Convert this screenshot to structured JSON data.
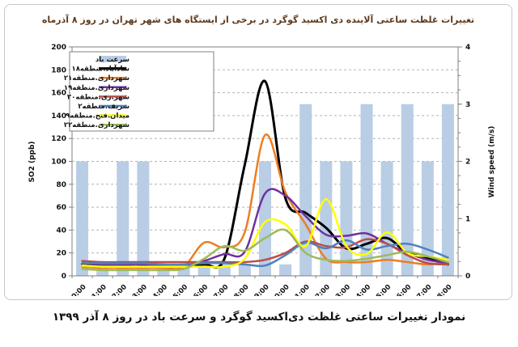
{
  "figure": {
    "title": "تغییرات غلظت ساعتی آلاینده دی اکسید گوگرد در برخی از ایستگاه های شهر تهران در روز ۸ آذرماه",
    "caption": "نمودار تغییرات ساعتی غلظت دی‌اکسید گوگرد و سرعت باد در روز ۸ آذر ۱۳۹۹"
  },
  "chart_data": {
    "type": "combo: bar (wind, right axis) + smooth lines (SO2, left axis)",
    "x_categories": [
      "00:00",
      "01:00",
      "02:00",
      "03:00",
      "04:00",
      "05:00",
      "06:00",
      "07:00",
      "08:00",
      "09:00",
      "10:00",
      "11:00",
      "12:00",
      "13:00",
      "14:00",
      "15:00",
      "16:00",
      "17:00",
      "18:00"
    ],
    "left_axis": {
      "title": "SO2 (ppb)",
      "min": 0,
      "max": 200,
      "step": 20,
      "tick_labels": [
        "0",
        "20",
        "40",
        "60",
        "80",
        "100",
        "120",
        "140",
        "160",
        "180",
        "200"
      ]
    },
    "right_axis": {
      "title": "Wind speed (m/s)",
      "min": 0,
      "max": 4,
      "step": 1,
      "tick_labels": [
        "0",
        "1",
        "2",
        "3",
        "4"
      ],
      "minor_step": 0.25
    },
    "grid": "horizontal dashed gray every 20 ppb",
    "legend_position": "top-left inside plot",
    "bar_series": {
      "name": "سرعت باد",
      "axis": "right",
      "color": "#B9CDE5",
      "values_mps": [
        2,
        0.2,
        2,
        2,
        0.2,
        0.2,
        0.2,
        0.2,
        0.2,
        2,
        0.2,
        3,
        2,
        2,
        3,
        2,
        3,
        2,
        3
      ]
    },
    "line_series": [
      {
        "name": "شادآباد.منطقه۱۸",
        "color": "#000000",
        "width": 3,
        "values": [
          10,
          10,
          10,
          10,
          9,
          8,
          10,
          15,
          97,
          170,
          68,
          55,
          42,
          24,
          28,
          33,
          20,
          16,
          10
        ]
      },
      {
        "name": "شهرداری.منطقه۲۱",
        "color": "#EE7D22",
        "width": 2.5,
        "values": [
          8,
          7,
          7,
          7,
          7,
          8,
          29,
          25,
          38,
          123,
          73,
          45,
          15,
          12,
          12,
          14,
          12,
          10,
          12
        ]
      },
      {
        "name": "شهرداری.منطقه۱۹",
        "color": "#7030A0",
        "width": 2.5,
        "values": [
          11,
          10,
          10,
          10,
          9,
          9,
          13,
          19,
          21,
          72,
          70,
          52,
          36,
          35,
          37,
          28,
          20,
          14,
          11
        ]
      },
      {
        "name": "شهر.ری.منطقه۲۰",
        "color": "#BE4B48",
        "width": 2.5,
        "values": [
          13,
          12,
          12,
          12,
          12,
          12,
          12,
          12,
          12,
          14,
          20,
          30,
          26,
          25,
          32,
          28,
          18,
          11,
          10
        ]
      },
      {
        "name": "شریف.منطقه۲",
        "color": "#4F81BD",
        "width": 2.5,
        "values": [
          11,
          11,
          11,
          11,
          10,
          10,
          11,
          11,
          10,
          9,
          18,
          29,
          24,
          31,
          23,
          26,
          28,
          23,
          16
        ]
      },
      {
        "name": "میدان.فتح.منطقه۹",
        "color": "#FFFF00",
        "width": 2.5,
        "values": [
          9,
          8,
          8,
          8,
          8,
          8,
          8,
          8,
          15,
          47,
          45,
          26,
          67,
          26,
          19,
          38,
          20,
          17,
          14
        ]
      },
      {
        "name": "شهرداری.منطقه۲۲",
        "color": "#9BBB59",
        "width": 2.5,
        "values": [
          6,
          5,
          5,
          5,
          5,
          6,
          15,
          26,
          22,
          33,
          40,
          20,
          14,
          13,
          15,
          18,
          21,
          17,
          12
        ]
      }
    ]
  }
}
